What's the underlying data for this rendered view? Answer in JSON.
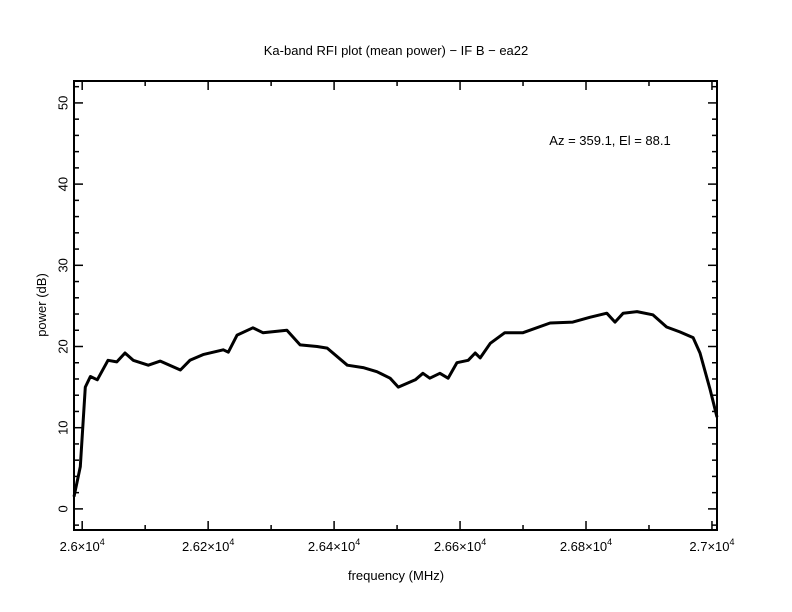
{
  "chart_data": {
    "type": "line",
    "title": "Ka-band RFI plot (mean power) − IF B − ea22",
    "xlabel": "frequency (MHz)",
    "ylabel": "power (dB)",
    "annotation": "Az = 359.1, El = 88.1",
    "xlim": [
      25987,
      27008
    ],
    "ylim": [
      -2.6,
      52.7
    ],
    "x_major_ticks": [
      26000,
      26200,
      26400,
      26600,
      26800,
      27000
    ],
    "x_tick_labels": [
      {
        "mant": "2.6",
        "exp": "4"
      },
      {
        "mant": "2.62",
        "exp": "4"
      },
      {
        "mant": "2.64",
        "exp": "4"
      },
      {
        "mant": "2.66",
        "exp": "4"
      },
      {
        "mant": "2.68",
        "exp": "4"
      },
      {
        "mant": "2.7",
        "exp": "4"
      }
    ],
    "x_minor_step": 100,
    "y_major_ticks": [
      0,
      10,
      20,
      30,
      40,
      50
    ],
    "y_tick_labels": [
      "0",
      "10",
      "20",
      "30",
      "40",
      "50"
    ],
    "y_minor_step": 2,
    "grid": false,
    "color": "#000000",
    "series": [
      {
        "name": "mean power",
        "x": [
          25987,
          25997,
          26005,
          26013,
          26024,
          26041,
          26055,
          26068,
          26081,
          26105,
          26124,
          26156,
          26171,
          26192,
          26224,
          26232,
          26246,
          26271,
          26287,
          26325,
          26346,
          26373,
          26389,
          26421,
          26446,
          26468,
          26489,
          26502,
          26529,
          26541,
          26552,
          26568,
          26581,
          26595,
          26613,
          26624,
          26632,
          26648,
          26671,
          26700,
          26743,
          26779,
          26806,
          26833,
          26846,
          26859,
          26881,
          26906,
          26928,
          26949,
          26970,
          26981,
          26997,
          27008
        ],
        "y": [
          1.5,
          5.2,
          15.0,
          16.3,
          15.9,
          18.3,
          18.1,
          19.2,
          18.3,
          17.7,
          18.2,
          17.1,
          18.3,
          19.0,
          19.6,
          19.3,
          21.4,
          22.3,
          21.7,
          22.0,
          20.2,
          20.0,
          19.8,
          17.7,
          17.4,
          16.9,
          16.1,
          15.0,
          15.9,
          16.7,
          16.1,
          16.7,
          16.1,
          18.0,
          18.3,
          19.2,
          18.6,
          20.4,
          21.7,
          21.7,
          22.9,
          23.0,
          23.6,
          24.1,
          23.0,
          24.1,
          24.3,
          23.9,
          22.4,
          21.8,
          21.1,
          19.2,
          14.7,
          11.3
        ]
      }
    ]
  }
}
